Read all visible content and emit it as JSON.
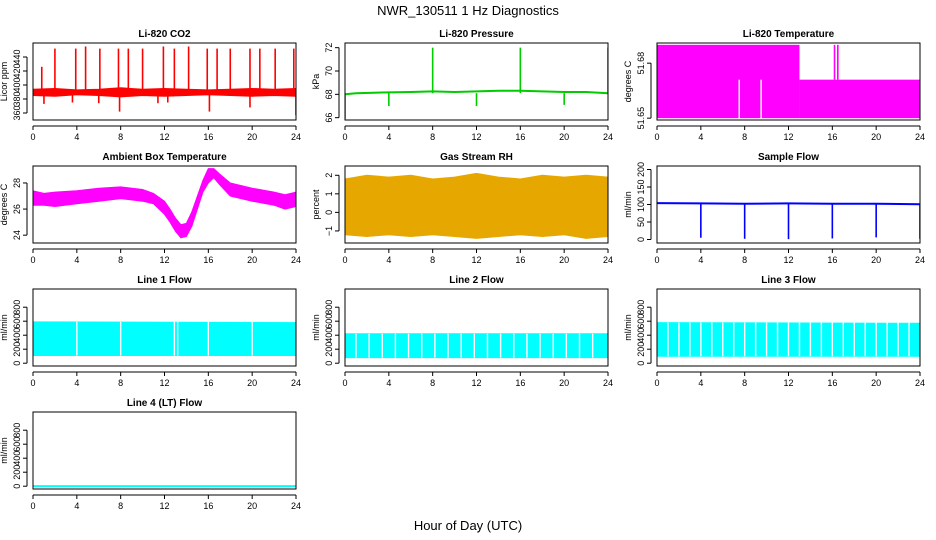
{
  "page": {
    "title": "NWR_130511  1 Hz Diagnostics",
    "xlabel": "Hour of Day (UTC)"
  },
  "chart_data": [
    {
      "id": "co2",
      "type": "line",
      "title": "Li-820 CO2",
      "ylabel": "Licor ppm",
      "color": "#ff0000",
      "xlim": [
        0,
        24
      ],
      "ylim": [
        350,
        460
      ],
      "xticks": [
        0,
        4,
        8,
        12,
        16,
        20,
        24
      ],
      "yticks": [
        360,
        380,
        400,
        420,
        440
      ],
      "series": [
        {
          "style": "band",
          "x": [
            0,
            2,
            4,
            6,
            8,
            10,
            12,
            14,
            16,
            18,
            20,
            22,
            24
          ],
          "low": [
            385,
            384,
            386,
            385,
            383,
            385,
            384,
            385,
            386,
            385,
            384,
            385,
            384
          ],
          "high": [
            394,
            395,
            393,
            394,
            396,
            394,
            395,
            394,
            393,
            394,
            395,
            394,
            395
          ]
        },
        {
          "style": "spikes",
          "x": [
            0.8,
            2.0,
            3.9,
            4.8,
            6.1,
            7.8,
            8.7,
            10.0,
            11.9,
            12.9,
            14.2,
            15.9,
            16.8,
            18.0,
            19.8,
            20.7,
            22.1,
            23.8
          ],
          "base": 390,
          "top": [
            426,
            452,
            452,
            455,
            452,
            452,
            452,
            452,
            455,
            452,
            455,
            452,
            452,
            452,
            452,
            452,
            452,
            452
          ]
        },
        {
          "style": "spikes",
          "x": [
            1.0,
            3.6,
            6.0,
            7.9,
            11.4,
            12.3,
            16.1,
            19.8,
            24.0
          ],
          "base": 388,
          "top": [
            373,
            375,
            374,
            362,
            374,
            375,
            362,
            368,
            357
          ]
        }
      ]
    },
    {
      "id": "pressure",
      "type": "line",
      "title": "Li-820 Pressure",
      "ylabel": "kPa",
      "color": "#00cc00",
      "xlim": [
        0,
        24
      ],
      "ylim": [
        65.8,
        72.4
      ],
      "xticks": [
        0,
        4,
        8,
        12,
        16,
        20,
        24
      ],
      "yticks": [
        66,
        68,
        70,
        72
      ],
      "series": [
        {
          "style": "line",
          "x": [
            0,
            1,
            3,
            6,
            8,
            10,
            12,
            14,
            16,
            18,
            20,
            22,
            24
          ],
          "y": [
            68.0,
            68.1,
            68.15,
            68.2,
            68.25,
            68.2,
            68.25,
            68.3,
            68.3,
            68.25,
            68.2,
            68.2,
            68.1
          ]
        },
        {
          "style": "spikes",
          "x": [
            0.0,
            8.0,
            16.0,
            24.0
          ],
          "base": 68.1,
          "top": [
            65.9,
            72.0,
            72.0,
            72.0
          ]
        },
        {
          "style": "spikes",
          "x": [
            4.0,
            12.0,
            20.0
          ],
          "base": 68.1,
          "top": [
            67.0,
            67.0,
            67.1
          ]
        }
      ]
    },
    {
      "id": "temperature",
      "type": "line",
      "title": "Li-820 Temperature",
      "ylabel": "degrees C",
      "color": "#ff00ff",
      "xlim": [
        0,
        24
      ],
      "ylim": [
        51.649,
        51.691
      ],
      "xticks": [
        0,
        4,
        8,
        12,
        16,
        20,
        24
      ],
      "yticks": [
        51.65,
        51.68
      ],
      "series": [
        {
          "style": "blocks",
          "x0": [
            0,
            13.0
          ],
          "x1": [
            13.0,
            24.0
          ],
          "low": [
            51.65,
            51.65
          ],
          "high": [
            51.69,
            51.671
          ]
        },
        {
          "style": "gaps",
          "x": [
            7.5,
            9.5
          ],
          "low": 51.65,
          "high": 51.671
        },
        {
          "style": "spikes",
          "x": [
            16.2,
            16.5
          ],
          "base": 51.671,
          "top": [
            51.69,
            51.69
          ]
        }
      ]
    },
    {
      "id": "ambient",
      "type": "line",
      "title": "Ambient Box Temperature",
      "ylabel": "degrees C",
      "color": "#ff00ff",
      "xlim": [
        0,
        24
      ],
      "ylim": [
        23.4,
        29.3
      ],
      "xticks": [
        0,
        4,
        8,
        12,
        16,
        20,
        24
      ],
      "yticks": [
        24,
        26,
        28
      ],
      "series": [
        {
          "style": "band",
          "x": [
            0,
            1,
            2,
            4,
            6,
            8,
            10,
            11,
            12,
            12.5,
            13,
            13.5,
            14,
            14.5,
            15,
            15.5,
            16,
            16.5,
            17,
            18,
            20,
            22,
            23,
            24
          ],
          "low": [
            26.3,
            26.3,
            26.2,
            26.4,
            26.6,
            26.8,
            26.6,
            26.4,
            25.6,
            25.0,
            24.3,
            23.8,
            23.9,
            24.7,
            26.0,
            27.3,
            28.0,
            28.4,
            27.9,
            27.0,
            26.6,
            26.3,
            26.0,
            26.2
          ],
          "high": [
            27.4,
            27.2,
            27.3,
            27.4,
            27.6,
            27.7,
            27.5,
            27.2,
            26.6,
            26.0,
            25.3,
            24.8,
            24.9,
            25.8,
            27.0,
            28.2,
            29.1,
            29.1,
            28.7,
            28.0,
            27.6,
            27.3,
            27.1,
            27.3
          ]
        }
      ]
    },
    {
      "id": "rh",
      "type": "scatter",
      "title": "Gas Stream RH",
      "ylabel": "percent",
      "color": "#e6a800",
      "xlim": [
        0,
        24
      ],
      "ylim": [
        -1.65,
        2.5
      ],
      "xticks": [
        0,
        4,
        8,
        12,
        16,
        20,
        24
      ],
      "yticks": [
        -1,
        0,
        1,
        2
      ],
      "series": [
        {
          "style": "band",
          "x": [
            0,
            2,
            4,
            6,
            8,
            10,
            12,
            14,
            16,
            18,
            20,
            22,
            24
          ],
          "low": [
            -1.2,
            -1.3,
            -1.2,
            -1.3,
            -1.2,
            -1.3,
            -1.4,
            -1.3,
            -1.2,
            -1.3,
            -1.2,
            -1.4,
            -1.3
          ],
          "high": [
            1.8,
            2.0,
            1.9,
            2.0,
            1.8,
            1.9,
            2.1,
            1.9,
            1.8,
            2.0,
            1.9,
            2.0,
            1.9
          ]
        }
      ]
    },
    {
      "id": "sample",
      "type": "line",
      "title": "Sample Flow",
      "ylabel": "ml/min",
      "color": "#0000ff",
      "xlim": [
        0,
        24
      ],
      "ylim": [
        -10,
        210
      ],
      "xticks": [
        0,
        4,
        8,
        12,
        16,
        20,
        24
      ],
      "yticks": [
        0,
        50,
        100,
        150,
        200
      ],
      "series": [
        {
          "style": "line",
          "x": [
            0,
            4,
            8,
            12,
            16,
            20,
            24
          ],
          "y": [
            104,
            103,
            102,
            103,
            102,
            102,
            101
          ]
        },
        {
          "style": "spikes",
          "x": [
            4.0,
            8.0,
            12.0,
            16.0,
            20.0,
            24.0
          ],
          "base": 102,
          "top": [
            5,
            2,
            1,
            3,
            6,
            2
          ]
        }
      ]
    },
    {
      "id": "line1",
      "type": "area",
      "title": "Line 1 Flow",
      "ylabel": "ml/min",
      "color": "#00ffff",
      "xlim": [
        0,
        24
      ],
      "ylim": [
        -40,
        1060
      ],
      "xticks": [
        0,
        4,
        8,
        12,
        16,
        20,
        24
      ],
      "yticks": [
        0,
        200,
        400,
        600,
        800
      ],
      "series": [
        {
          "style": "band",
          "x": [
            0,
            24
          ],
          "low": [
            110,
            110
          ],
          "high": [
            590,
            580
          ]
        },
        {
          "style": "gaps",
          "x": [
            4.0,
            8.0,
            12.9,
            13.2,
            16.0,
            20.0
          ],
          "low": 110,
          "high": 590
        }
      ]
    },
    {
      "id": "line2",
      "type": "area",
      "title": "Line 2 Flow",
      "ylabel": "ml/min",
      "color": "#00ffff",
      "xlim": [
        0,
        24
      ],
      "ylim": [
        -40,
        1060
      ],
      "xticks": [
        0,
        4,
        8,
        12,
        16,
        20,
        24
      ],
      "yticks": [
        0,
        200,
        400,
        600,
        800
      ],
      "series": [
        {
          "style": "band",
          "x": [
            0,
            24
          ],
          "low": [
            80,
            80
          ],
          "high": [
            420,
            420
          ]
        },
        {
          "style": "gaps",
          "x": [
            1,
            2.2,
            3.4,
            4.6,
            5.8,
            7,
            8.2,
            9.4,
            10.6,
            11.8,
            13,
            14.2,
            15.4,
            16.6,
            17.8,
            19,
            20.2,
            21.4,
            22.6
          ],
          "low": 80,
          "high": 420
        }
      ]
    },
    {
      "id": "line3",
      "type": "area",
      "title": "Line 3 Flow",
      "ylabel": "ml/min",
      "color": "#00ffff",
      "xlim": [
        0,
        24
      ],
      "ylim": [
        -40,
        1060
      ],
      "xticks": [
        0,
        4,
        8,
        12,
        16,
        20,
        24
      ],
      "yticks": [
        0,
        200,
        400,
        600,
        800
      ],
      "series": [
        {
          "style": "band",
          "x": [
            0,
            24
          ],
          "low": [
            100,
            100
          ],
          "high": [
            580,
            570
          ]
        },
        {
          "style": "gaps",
          "x": [
            1,
            2,
            3,
            4,
            5,
            6,
            7,
            8,
            9,
            10,
            11,
            12,
            13,
            14,
            15,
            16,
            17,
            18,
            19,
            20,
            21,
            22,
            23
          ],
          "low": 100,
          "high": 580
        }
      ]
    },
    {
      "id": "line4",
      "type": "line",
      "title": "Line 4 (LT) Flow",
      "ylabel": "ml/min",
      "color": "#00ffff",
      "xlim": [
        0,
        24
      ],
      "ylim": [
        -40,
        1060
      ],
      "xticks": [
        0,
        4,
        8,
        12,
        16,
        20,
        24
      ],
      "yticks": [
        0,
        200,
        400,
        600,
        800
      ],
      "series": [
        {
          "style": "line",
          "x": [
            0,
            24
          ],
          "y": [
            2,
            2
          ]
        }
      ]
    }
  ]
}
